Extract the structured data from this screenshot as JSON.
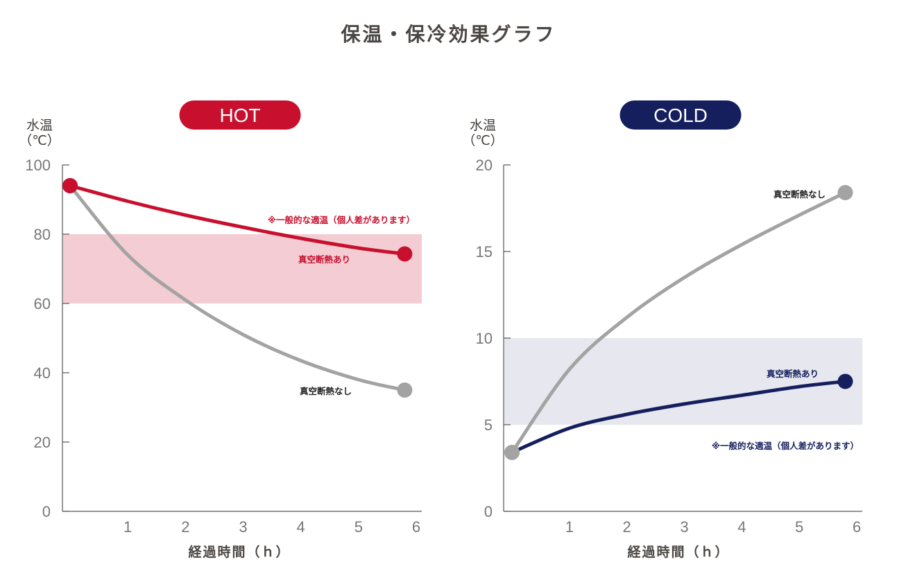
{
  "page": {
    "title": "保温・保冷効果グラフ"
  },
  "chart_data": [
    {
      "type": "line",
      "badge": "HOT",
      "badge_color": "#c8102e",
      "ylabel_line1": "水温",
      "ylabel_line2": "（℃）",
      "xlabel": "経過時間（ｈ）",
      "ylim": [
        0,
        100
      ],
      "yticks": [
        0,
        20,
        40,
        60,
        80,
        100
      ],
      "xlim": [
        0,
        6
      ],
      "xticks": [
        1,
        2,
        3,
        4,
        5,
        6
      ],
      "comfort_band": {
        "from": 60,
        "to": 80,
        "color": "#f3cdd3",
        "note": "※一般的な適温（個人差があります）",
        "note_color": "#c8102e"
      },
      "series": [
        {
          "name": "真空断熱あり",
          "color": "#c8102e",
          "label_color": "#c8102e",
          "x": [
            0,
            1,
            2,
            3,
            4,
            5,
            5.8
          ],
          "values": [
            94,
            89.5,
            85.5,
            82,
            78.8,
            76,
            74.3
          ]
        },
        {
          "name": "真空断熱なし",
          "color": "#a3a3a3",
          "label_color": "#222222",
          "x": [
            0,
            1,
            2,
            3,
            4,
            5,
            5.8
          ],
          "values": [
            94,
            74,
            61,
            51,
            43.5,
            38,
            35
          ]
        }
      ]
    },
    {
      "type": "line",
      "badge": "COLD",
      "badge_color": "#151f5e",
      "ylabel_line1": "水温",
      "ylabel_line2": "（℃）",
      "xlabel": "経過時間（ｈ）",
      "ylim": [
        0,
        20
      ],
      "yticks": [
        0,
        5,
        10,
        15,
        20
      ],
      "xlim": [
        0,
        6
      ],
      "xticks": [
        1,
        2,
        3,
        4,
        5,
        6
      ],
      "comfort_band": {
        "from": 5,
        "to": 10,
        "color": "#e6e7ef",
        "note": "※一般的な適温（個人差があります）",
        "note_color": "#151f5e"
      },
      "series": [
        {
          "name": "真空断熱なし",
          "color": "#a3a3a3",
          "label_color": "#222222",
          "x": [
            0,
            1,
            2,
            3,
            4,
            5,
            5.8
          ],
          "values": [
            3.4,
            8.2,
            11.2,
            13.5,
            15.4,
            17.1,
            18.4
          ]
        },
        {
          "name": "真空断熱あり",
          "color": "#151f5e",
          "label_color": "#151f5e",
          "x": [
            0,
            1,
            2,
            3,
            4,
            5,
            5.8
          ],
          "values": [
            3.4,
            4.8,
            5.6,
            6.2,
            6.7,
            7.2,
            7.5
          ]
        }
      ]
    }
  ]
}
